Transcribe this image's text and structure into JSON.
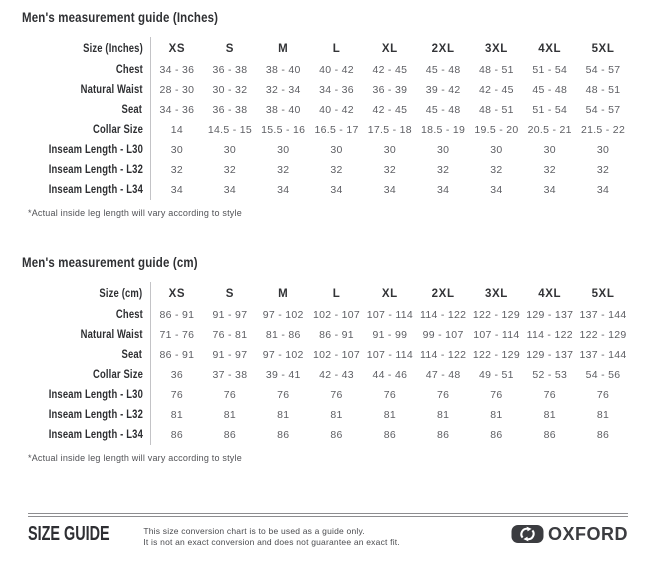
{
  "colors": {
    "background": "#ffffff",
    "heading_text": "#2f3033",
    "value_text": "#5d5e63",
    "column_divider": "#c3c3c6",
    "footer_rule": "#8d8d90",
    "logo_dark": "#3b3c40"
  },
  "icons": {
    "oxford_badge": "interlocking-arrows-badge"
  },
  "tables": [
    {
      "title": "Men's measurement guide (Inches)",
      "header": [
        "Size (Inches)",
        "XS",
        "S",
        "M",
        "L",
        "XL",
        "2XL",
        "3XL",
        "4XL",
        "5XL"
      ],
      "rows": [
        {
          "label": "Chest",
          "values": [
            "34 - 36",
            "36 - 38",
            "38 - 40",
            "40 - 42",
            "42 - 45",
            "45 - 48",
            "48 - 51",
            "51 - 54",
            "54 - 57"
          ]
        },
        {
          "label": "Natural Waist",
          "values": [
            "28 - 30",
            "30 - 32",
            "32 - 34",
            "34 - 36",
            "36 - 39",
            "39 - 42",
            "42 - 45",
            "45 - 48",
            "48 - 51"
          ]
        },
        {
          "label": "Seat",
          "values": [
            "34 - 36",
            "36 - 38",
            "38 - 40",
            "40 - 42",
            "42 - 45",
            "45 - 48",
            "48 - 51",
            "51 - 54",
            "54 - 57"
          ]
        },
        {
          "label": "Collar Size",
          "values": [
            "14",
            "14.5 - 15",
            "15.5 - 16",
            "16.5 - 17",
            "17.5 - 18",
            "18.5 - 19",
            "19.5 - 20",
            "20.5 - 21",
            "21.5 - 22"
          ]
        },
        {
          "label": "Inseam Length - L30",
          "values": [
            "30",
            "30",
            "30",
            "30",
            "30",
            "30",
            "30",
            "30",
            "30"
          ]
        },
        {
          "label": "Inseam Length - L32",
          "values": [
            "32",
            "32",
            "32",
            "32",
            "32",
            "32",
            "32",
            "32",
            "32"
          ]
        },
        {
          "label": "Inseam Length - L34",
          "values": [
            "34",
            "34",
            "34",
            "34",
            "34",
            "34",
            "34",
            "34",
            "34"
          ]
        }
      ],
      "footnote": "*Actual inside leg length will vary according to style"
    },
    {
      "title": "Men's measurement guide (cm)",
      "header": [
        "Size (cm)",
        "XS",
        "S",
        "M",
        "L",
        "XL",
        "2XL",
        "3XL",
        "4XL",
        "5XL"
      ],
      "rows": [
        {
          "label": "Chest",
          "values": [
            "86 - 91",
            "91 - 97",
            "97 - 102",
            "102 - 107",
            "107 - 114",
            "114 - 122",
            "122 - 129",
            "129 - 137",
            "137 - 144"
          ]
        },
        {
          "label": "Natural Waist",
          "values": [
            "71 - 76",
            "76 - 81",
            "81 - 86",
            "86 - 91",
            "91 - 99",
            "99 - 107",
            "107 - 114",
            "114 - 122",
            "122 - 129"
          ]
        },
        {
          "label": "Seat",
          "values": [
            "86 - 91",
            "91 - 97",
            "97 - 102",
            "102 - 107",
            "107 - 114",
            "114 - 122",
            "122 - 129",
            "129 - 137",
            "137 - 144"
          ]
        },
        {
          "label": "Collar Size",
          "values": [
            "36",
            "37 - 38",
            "39 - 41",
            "42 - 43",
            "44 - 46",
            "47 - 48",
            "49 - 51",
            "52 - 53",
            "54 - 56"
          ]
        },
        {
          "label": "Inseam Length - L30",
          "values": [
            "76",
            "76",
            "76",
            "76",
            "76",
            "76",
            "76",
            "76",
            "76"
          ]
        },
        {
          "label": "Inseam Length - L32",
          "values": [
            "81",
            "81",
            "81",
            "81",
            "81",
            "81",
            "81",
            "81",
            "81"
          ]
        },
        {
          "label": "Inseam Length - L34",
          "values": [
            "86",
            "86",
            "86",
            "86",
            "86",
            "86",
            "86",
            "86",
            "86"
          ]
        }
      ],
      "footnote": "*Actual inside leg length will vary according to style"
    }
  ],
  "footer": {
    "brand": "SIZE GUIDE",
    "note_line1": "This size conversion chart is to be used as a guide only.",
    "note_line2": "It is not an exact conversion and does not guarantee an exact fit.",
    "logo_text": "OXFORD"
  }
}
